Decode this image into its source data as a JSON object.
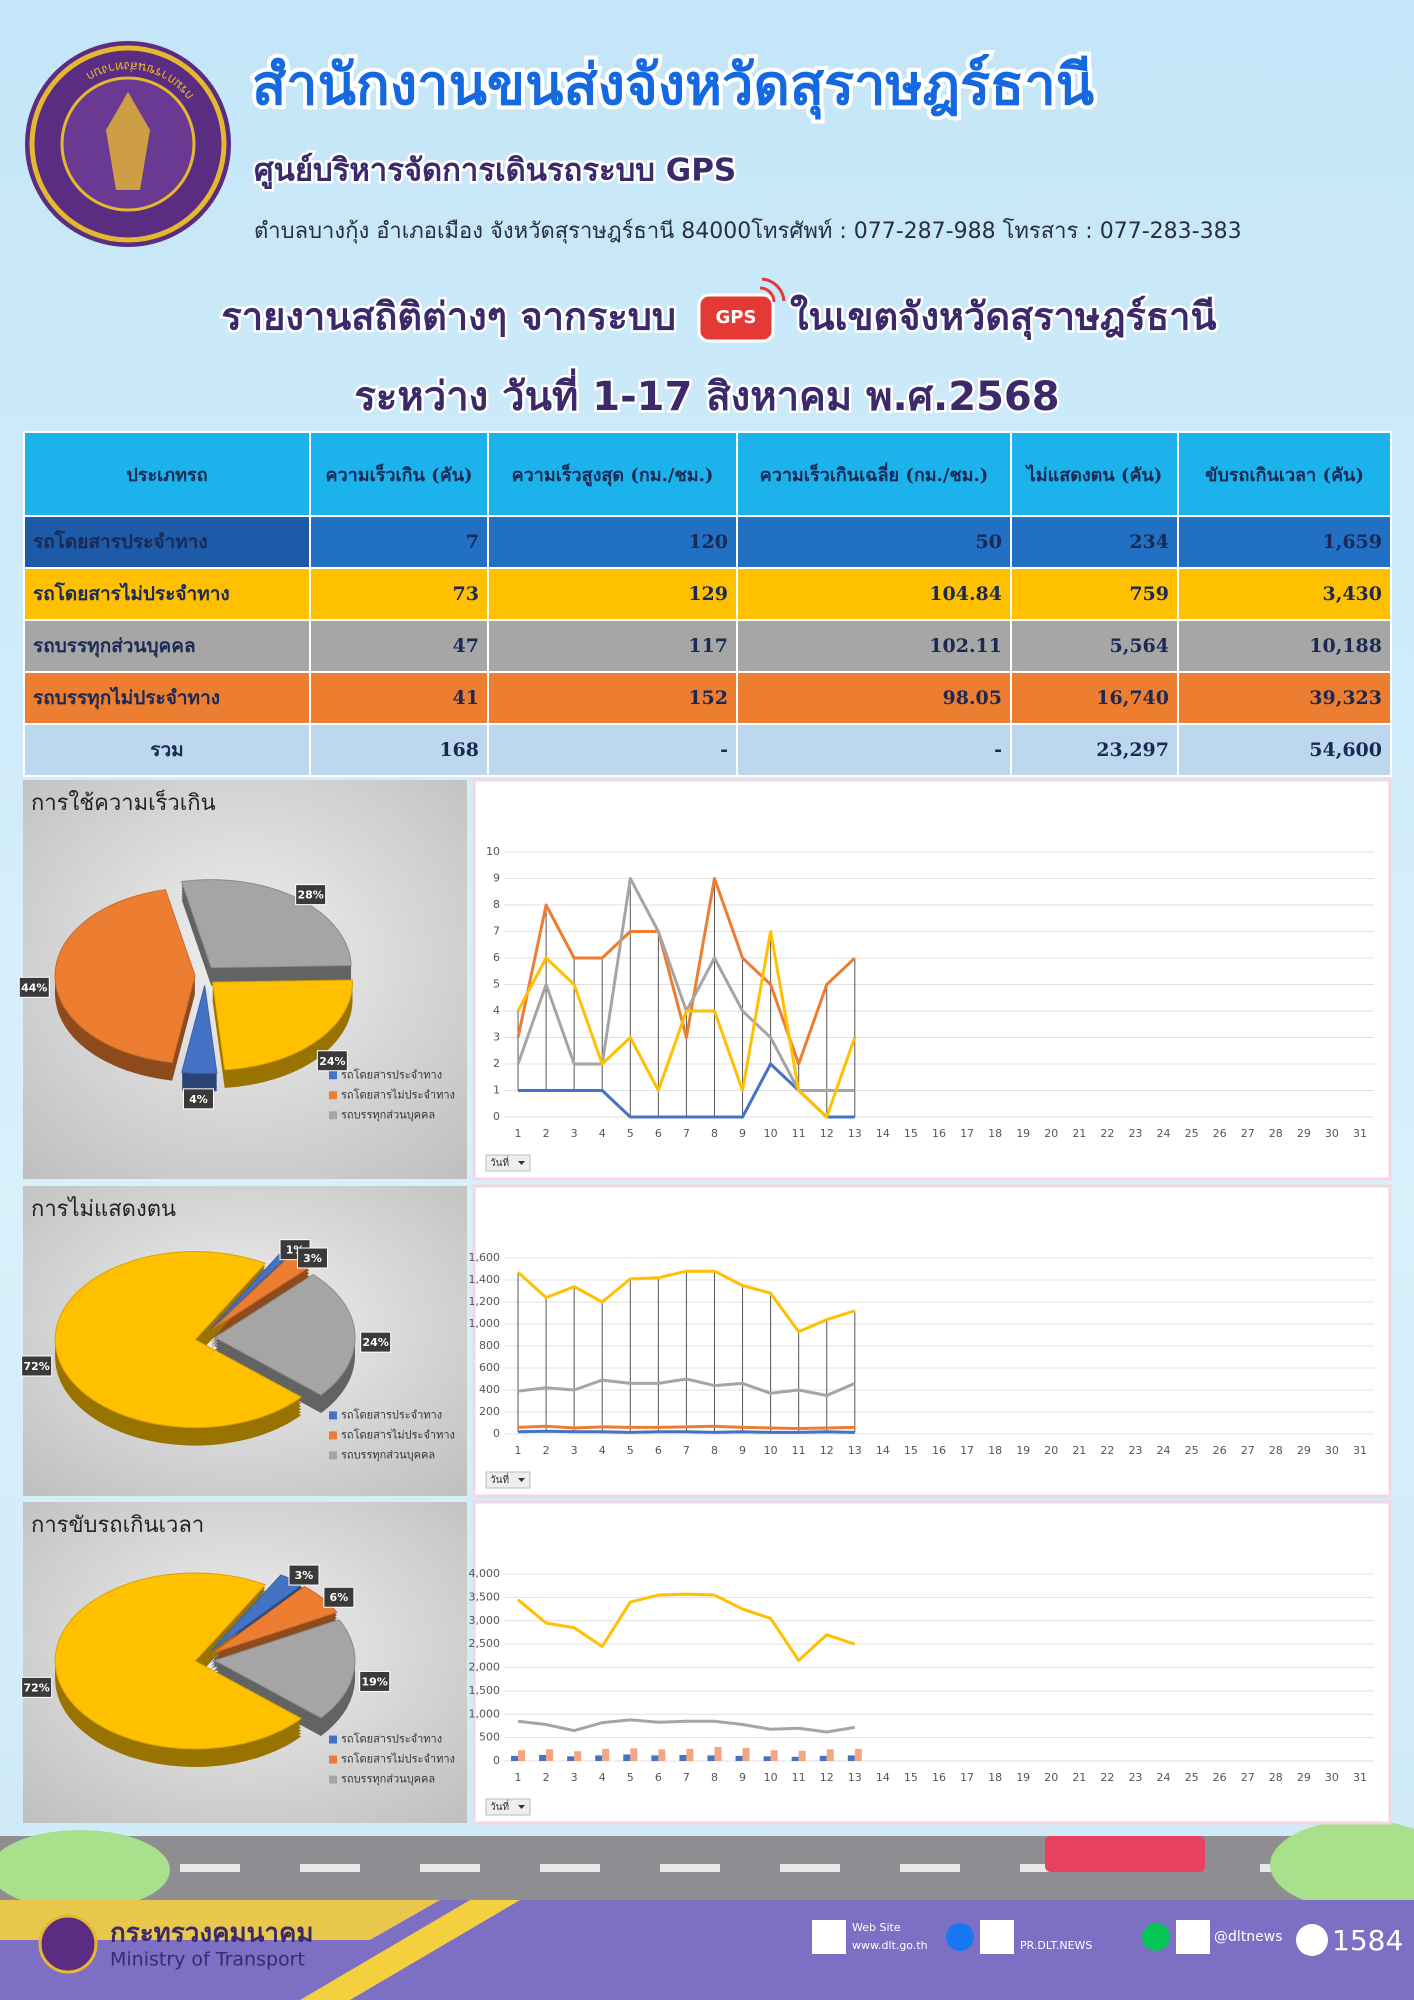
{
  "header": {
    "title": "สำนักงานขนส่งจังหวัดสุราษฎร์ธานี",
    "subtitle": "ศูนย์บริหารจัดการเดินรถระบบ GPS",
    "address": "ตำบลบางกุ้ง อำเภอเมือง จังหวัดสุราษฎร์ธานี 84000โทรศัพท์ : 077-287-988 โทรสาร : 077-283-383",
    "logo_text": "กรมการขนส่งทางบก"
  },
  "report": {
    "title_start": "รายงานสถิติต่างๆ จากระบบ",
    "icon_label": "GPS",
    "title_end": "ในเขตจังหวัดสุราษฎร์ธานี",
    "period": "ระหว่าง วันที่ 1-17 สิงหาคม พ.ศ.2568"
  },
  "table": {
    "columns": [
      "ประเภทรถ",
      "ความเร็วเกิน (คัน)",
      "ความเร็วสูงสุด (กม./ชม.)",
      "ความเร็วเกินเฉลี่ย (กม./ชม.)",
      "ไม่แสดงตน (คัน)",
      "ขับรถเกินเวลา (คัน)"
    ],
    "rows": [
      [
        "รถโดยสารประจำทาง",
        "7",
        "120",
        "50",
        "234",
        "1,659"
      ],
      [
        "รถโดยสารไม่ประจำทาง",
        "73",
        "129",
        "104.84",
        "759",
        "3,430"
      ],
      [
        "รถบรรทุกส่วนบุคคล",
        "47",
        "117",
        "102.11",
        "5,564",
        "10,188"
      ],
      [
        "รถบรรทุกไม่ประจำทาง",
        "41",
        "152",
        "98.05",
        "16,740",
        "39,323"
      ],
      [
        "รวม",
        "168",
        "-",
        "-",
        "23,297",
        "54,600"
      ]
    ]
  },
  "chart_data": [
    {
      "type": "pie",
      "title": "การใช้ความเร็วเกิน",
      "categories": [
        "รถโดยสารประจำทาง",
        "รถโดยสารไม่ประจำทาง",
        "รถบรรทุกส่วนบุคคล",
        null
      ],
      "values": [
        4,
        44,
        28,
        24
      ],
      "value_labels": [
        "4%",
        "44%",
        "28%",
        "24%"
      ],
      "colors": [
        "#4472c4",
        "#ed7d31",
        "#a5a5a5",
        "#ffc000"
      ]
    },
    {
      "type": "line",
      "categories": [
        1,
        2,
        3,
        4,
        5,
        6,
        7,
        8,
        9,
        10,
        11,
        12,
        13,
        14,
        15,
        16,
        17,
        18,
        19,
        20,
        21,
        22,
        23,
        24,
        25,
        26,
        27,
        28,
        29,
        30,
        31
      ],
      "ylim": [
        0,
        10
      ],
      "yticks": [
        0,
        1,
        2,
        3,
        4,
        5,
        6,
        7,
        8,
        9,
        10
      ],
      "grid": true,
      "filter_label": "วันที่",
      "series": [
        {
          "color": "#4472c4",
          "values": [
            1,
            1,
            1,
            1,
            0,
            0,
            0,
            0,
            0,
            2,
            1,
            0,
            0,
            null,
            null,
            null,
            null,
            null,
            null,
            null,
            null,
            null,
            null,
            null,
            null,
            null,
            null,
            null,
            null,
            null,
            null
          ]
        },
        {
          "color": "#ed7d31",
          "values": [
            3,
            8,
            6,
            6,
            7,
            7,
            3,
            9,
            6,
            5,
            2,
            5,
            6,
            null,
            null,
            null,
            null,
            null,
            null,
            null,
            null,
            null,
            null,
            null,
            null,
            null,
            null,
            null,
            null,
            null,
            null
          ]
        },
        {
          "color": "#a5a5a5",
          "values": [
            2,
            5,
            2,
            2,
            9,
            7,
            4,
            6,
            4,
            3,
            1,
            1,
            1,
            null,
            null,
            null,
            null,
            null,
            null,
            null,
            null,
            null,
            null,
            null,
            null,
            null,
            null,
            null,
            null,
            null,
            null
          ]
        },
        {
          "color": "#ffc000",
          "values": [
            4,
            6,
            5,
            2,
            3,
            1,
            4,
            4,
            1,
            7,
            1,
            0,
            3,
            null,
            null,
            null,
            null,
            null,
            null,
            null,
            null,
            null,
            null,
            null,
            null,
            null,
            null,
            null,
            null,
            null,
            null
          ]
        }
      ]
    },
    {
      "type": "pie",
      "title": "การไม่แสดงตน",
      "categories": [
        "รถโดยสารประจำทาง",
        "รถโดยสารไม่ประจำทาง",
        "รถบรรทุกส่วนบุคคล",
        null
      ],
      "values": [
        1,
        3,
        24,
        72
      ],
      "value_labels": [
        "1%",
        "3%",
        "24%",
        "72%"
      ],
      "colors": [
        "#4472c4",
        "#ed7d31",
        "#a5a5a5",
        "#ffc000"
      ]
    },
    {
      "type": "line",
      "categories": [
        1,
        2,
        3,
        4,
        5,
        6,
        7,
        8,
        9,
        10,
        11,
        12,
        13,
        14,
        15,
        16,
        17,
        18,
        19,
        20,
        21,
        22,
        23,
        24,
        25,
        26,
        27,
        28,
        29,
        30,
        31
      ],
      "ylim": [
        0,
        1600
      ],
      "yticks": [
        0,
        200,
        400,
        600,
        800,
        {
          "value": 1000,
          "label": "1,000"
        },
        {
          "value": 1200,
          "label": "1,200"
        },
        {
          "value": 1400,
          "label": "1,400"
        },
        {
          "value": 1600,
          "label": "1,600"
        }
      ],
      "grid": true,
      "filter_label": "วันที่",
      "series": [
        {
          "color": "#4472c4",
          "values": [
            20,
            25,
            20,
            20,
            15,
            20,
            20,
            15,
            20,
            15,
            15,
            20,
            15,
            null,
            null,
            null,
            null,
            null,
            null,
            null,
            null,
            null,
            null,
            null,
            null,
            null,
            null,
            null,
            null,
            null,
            null
          ]
        },
        {
          "color": "#ed7d31",
          "values": [
            60,
            70,
            55,
            65,
            60,
            60,
            65,
            70,
            60,
            55,
            50,
            55,
            60,
            null,
            null,
            null,
            null,
            null,
            null,
            null,
            null,
            null,
            null,
            null,
            null,
            null,
            null,
            null,
            null,
            null,
            null
          ]
        },
        {
          "color": "#a5a5a5",
          "values": [
            390,
            420,
            400,
            490,
            460,
            460,
            500,
            440,
            460,
            370,
            400,
            350,
            460,
            null,
            null,
            null,
            null,
            null,
            null,
            null,
            null,
            null,
            null,
            null,
            null,
            null,
            null,
            null,
            null,
            null,
            null
          ]
        },
        {
          "color": "#ffc000",
          "values": [
            1470,
            1240,
            1340,
            1200,
            1410,
            1420,
            1480,
            1480,
            1350,
            1280,
            930,
            1040,
            1120,
            null,
            null,
            null,
            null,
            null,
            null,
            null,
            null,
            null,
            null,
            null,
            null,
            null,
            null,
            null,
            null,
            null,
            null
          ]
        }
      ]
    },
    {
      "type": "pie",
      "title": "การขับรถเกินเวลา",
      "categories": [
        "รถโดยสารประจำทาง",
        "รถโดยสารไม่ประจำทาง",
        "รถบรรทุกส่วนบุคคล",
        null
      ],
      "values": [
        3,
        6,
        19,
        72
      ],
      "value_labels": [
        "3%",
        "6%",
        "19%",
        "72%"
      ],
      "colors": [
        "#4472c4",
        "#ed7d31",
        "#a5a5a5",
        "#ffc000"
      ]
    },
    {
      "type": "line",
      "categories": [
        1,
        2,
        3,
        4,
        5,
        6,
        7,
        8,
        9,
        10,
        11,
        12,
        13,
        14,
        15,
        16,
        17,
        18,
        19,
        20,
        21,
        22,
        23,
        24,
        25,
        26,
        27,
        28,
        29,
        30,
        31
      ],
      "ylim": [
        0,
        4000
      ],
      "yticks": [
        0,
        500,
        {
          "value": 1000,
          "label": "1,000"
        },
        {
          "value": 1500,
          "label": "1,500"
        },
        {
          "value": 2000,
          "label": "2,000"
        },
        {
          "value": 2500,
          "label": "2,500"
        },
        {
          "value": 3000,
          "label": "3,000"
        },
        {
          "value": 3500,
          "label": "3,500"
        },
        {
          "value": 4000,
          "label": "4,000"
        }
      ],
      "grid": true,
      "filter_label": "วันที่",
      "series": [
        {
          "color": "#4472c4",
          "style": "bar",
          "values": [
            110,
            130,
            100,
            120,
            140,
            120,
            130,
            120,
            110,
            100,
            90,
            110,
            120,
            null,
            null,
            null,
            null,
            null,
            null,
            null,
            null,
            null,
            null,
            null,
            null,
            null,
            null,
            null,
            null,
            null,
            null
          ]
        },
        {
          "color": "#f4a582",
          "style": "bar",
          "values": [
            230,
            250,
            210,
            260,
            270,
            250,
            260,
            300,
            280,
            230,
            220,
            250,
            260,
            null,
            null,
            null,
            null,
            null,
            null,
            null,
            null,
            null,
            null,
            null,
            null,
            null,
            null,
            null,
            null,
            null,
            null
          ]
        },
        {
          "color": "#a5a5a5",
          "values": [
            850,
            780,
            650,
            820,
            880,
            830,
            850,
            850,
            780,
            680,
            700,
            620,
            720,
            null,
            null,
            null,
            null,
            null,
            null,
            null,
            null,
            null,
            null,
            null,
            null,
            null,
            null,
            null,
            null,
            null,
            null
          ]
        },
        {
          "color": "#ffc000",
          "values": [
            3450,
            2950,
            2850,
            2450,
            3400,
            3550,
            3570,
            3550,
            3250,
            3050,
            2150,
            2700,
            2500,
            null,
            null,
            null,
            null,
            null,
            null,
            null,
            null,
            null,
            null,
            null,
            null,
            null,
            null,
            null,
            null,
            null,
            null
          ]
        }
      ]
    }
  ],
  "footer": {
    "ministry_th": "กระทรวงคมนาคม",
    "ministry_en": "Ministry of Transport",
    "website_label": "Web Site",
    "website": "www.dlt.go.th",
    "facebook": "PR.DLT.NEWS",
    "line": "@dltnews",
    "call_center": "1584"
  }
}
